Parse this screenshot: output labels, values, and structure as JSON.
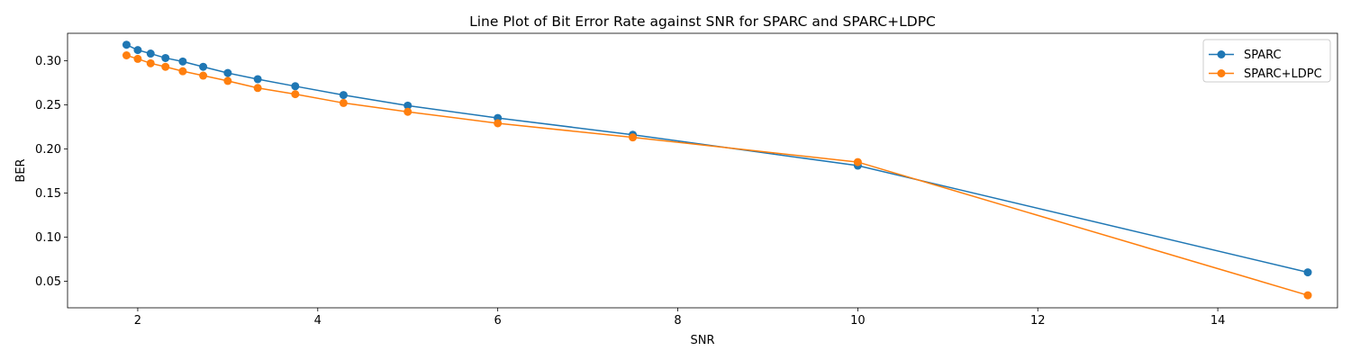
{
  "chart_data": {
    "type": "line",
    "title": "Line Plot of Bit Error Rate against SNR for SPARC and SPARC+LDPC",
    "xlabel": "SNR",
    "ylabel": "BER",
    "xlim": [
      1.22,
      15.33
    ],
    "ylim": [
      0.0198,
      0.331
    ],
    "xticks": [
      2,
      4,
      6,
      8,
      10,
      12,
      14
    ],
    "xtick_labels": [
      "2",
      "4",
      "6",
      "8",
      "10",
      "12",
      "14"
    ],
    "yticks": [
      0.05,
      0.1,
      0.15,
      0.2,
      0.25,
      0.3
    ],
    "ytick_labels": [
      "0.05",
      "0.10",
      "0.15",
      "0.20",
      "0.25",
      "0.30"
    ],
    "grid": false,
    "legend_position": "top-right",
    "series": [
      {
        "name": "SPARC",
        "color": "#1f77b4",
        "marker": "circle",
        "x": [
          1.875,
          2.0,
          2.143,
          2.308,
          2.5,
          2.727,
          3.0,
          3.333,
          3.75,
          4.286,
          5.0,
          6.0,
          7.5,
          10.0,
          15.0
        ],
        "y": [
          0.318,
          0.312,
          0.308,
          0.303,
          0.299,
          0.293,
          0.286,
          0.279,
          0.271,
          0.261,
          0.249,
          0.235,
          0.216,
          0.181,
          0.06
        ]
      },
      {
        "name": "SPARC+LDPC",
        "color": "#ff7f0e",
        "marker": "circle",
        "x": [
          1.875,
          2.0,
          2.143,
          2.308,
          2.5,
          2.727,
          3.0,
          3.333,
          3.75,
          4.286,
          5.0,
          6.0,
          7.5,
          10.0,
          15.0
        ],
        "y": [
          0.306,
          0.302,
          0.297,
          0.293,
          0.288,
          0.283,
          0.277,
          0.269,
          0.262,
          0.252,
          0.242,
          0.229,
          0.213,
          0.185,
          0.034
        ]
      }
    ]
  }
}
